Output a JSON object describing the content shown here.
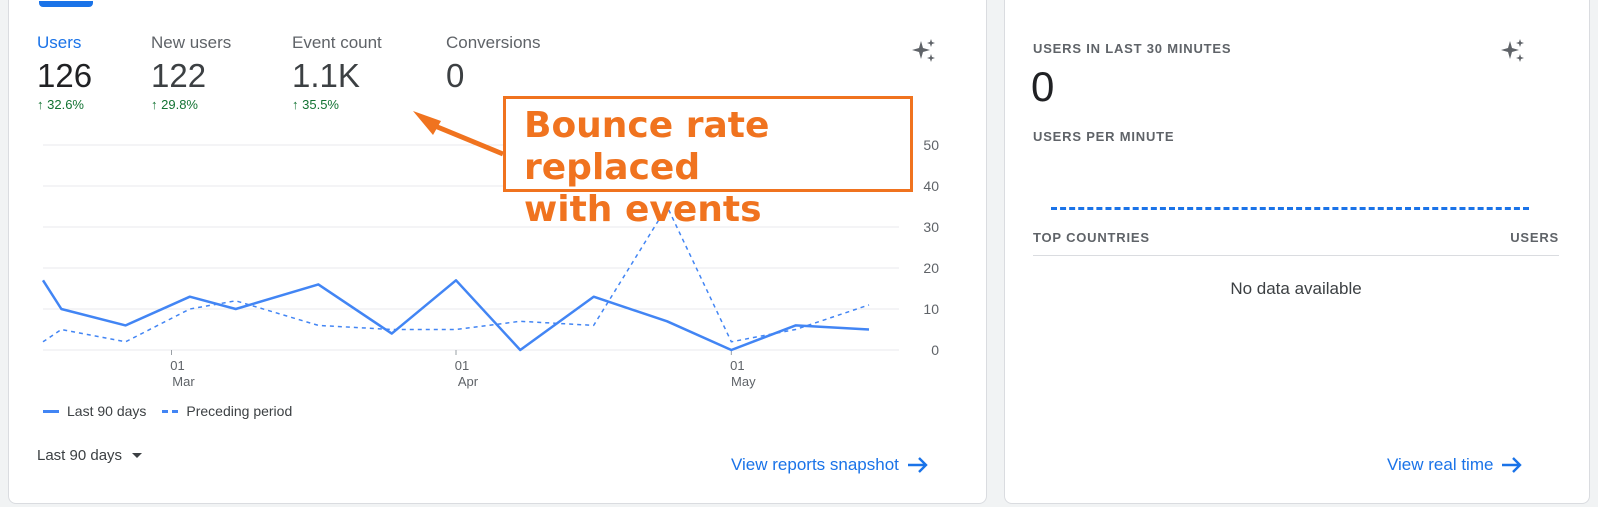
{
  "main": {
    "metrics": [
      {
        "label": "Users",
        "value": "126",
        "change": "32.6%"
      },
      {
        "label": "New users",
        "value": "122",
        "change": "29.8%"
      },
      {
        "label": "Event count",
        "value": "1.1K",
        "change": "35.5%"
      },
      {
        "label": "Conversions",
        "value": "0",
        "change": ""
      }
    ],
    "annotation": {
      "line1": "Bounce rate replaced",
      "line2": "with events"
    },
    "legend": {
      "current": "Last 90 days",
      "previous": "Preceding period"
    },
    "date_range": "Last 90 days",
    "view_link": "View reports snapshot",
    "accent_color": "#1a73e8",
    "positive_color": "#137333",
    "annotation_color": "#f0731f"
  },
  "chart_data": {
    "type": "line",
    "ylim": [
      0,
      50
    ],
    "yticks": [
      0,
      10,
      20,
      30,
      40,
      50
    ],
    "xticks": [
      {
        "day": "01",
        "month": "Mar",
        "x": 14
      },
      {
        "day": "01",
        "month": "Apr",
        "x": 45
      },
      {
        "day": "01",
        "month": "May",
        "x": 75
      }
    ],
    "x": [
      0,
      2,
      9,
      16,
      21,
      30,
      38,
      45,
      52,
      60,
      68,
      75,
      82,
      90
    ],
    "series": [
      {
        "name": "Last 90 days",
        "style": "solid",
        "values": [
          17,
          10,
          6,
          13,
          10,
          16,
          4,
          17,
          0,
          13,
          7,
          0,
          6,
          5
        ]
      },
      {
        "name": "Preceding period",
        "style": "dashed",
        "values": [
          2,
          5,
          2,
          10,
          12,
          6,
          5,
          5,
          7,
          6,
          35,
          2,
          5,
          11
        ]
      }
    ],
    "grid": true,
    "legend_position": "bottom-left"
  },
  "realtime": {
    "users_label": "USERS IN LAST 30 MINUTES",
    "users_value": "0",
    "per_minute_label": "USERS PER MINUTE",
    "top_countries_label": "TOP COUNTRIES",
    "users_col_label": "USERS",
    "no_data": "No data available",
    "view_link": "View real time"
  }
}
